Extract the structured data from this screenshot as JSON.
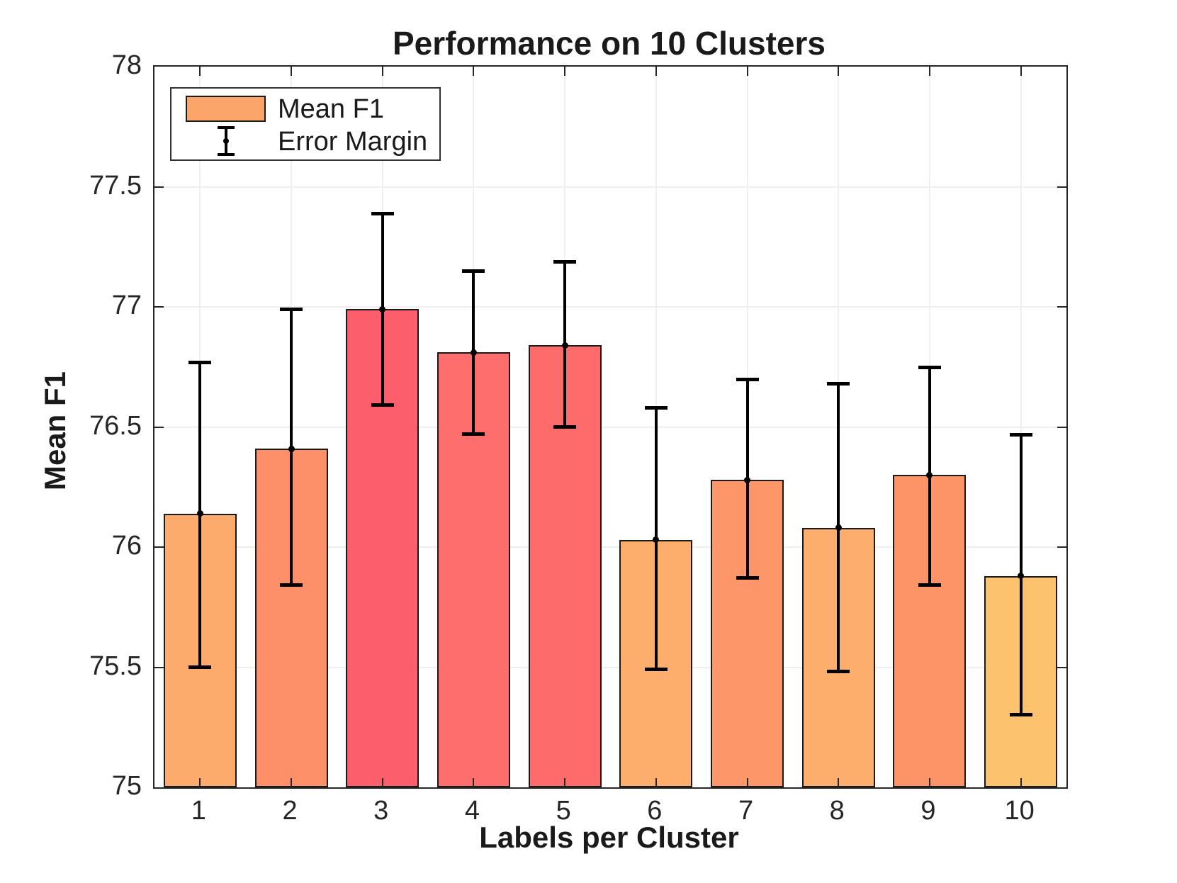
{
  "chart_data": {
    "type": "bar",
    "title": "Performance on 10 Clusters",
    "xlabel": "Labels per Cluster",
    "ylabel": "Mean F1",
    "categories": [
      "1",
      "2",
      "3",
      "4",
      "5",
      "6",
      "7",
      "8",
      "9",
      "10"
    ],
    "series": [
      {
        "name": "Mean F1",
        "values": [
          76.14,
          76.41,
          76.99,
          76.81,
          76.84,
          76.03,
          76.28,
          76.08,
          76.3,
          75.88
        ]
      }
    ],
    "error_low": [
      75.5,
      75.84,
      76.59,
      76.47,
      76.5,
      75.49,
      75.87,
      75.48,
      75.84,
      75.3
    ],
    "error_high": [
      76.77,
      76.99,
      77.39,
      77.15,
      77.19,
      76.58,
      76.7,
      76.68,
      76.75,
      76.47
    ],
    "bar_colors": [
      "#fdab6c",
      "#fd9069",
      "#fd5e6b",
      "#fd6e6c",
      "#fd6c6b",
      "#fdae6d",
      "#fd9668",
      "#fdad6c",
      "#fd9468",
      "#fdc26e"
    ],
    "bar_edge_color": "#1a1a1a",
    "error_color": "#000000",
    "grid_color": "#f3eeee",
    "ylim": [
      75,
      78
    ],
    "yticks": [
      75,
      75.5,
      76,
      76.5,
      77,
      77.5,
      78
    ],
    "grid": true,
    "legend": {
      "position": "top-left",
      "items": [
        {
          "label": "Mean F1",
          "swatch": "bar",
          "swatch_color": "#fba56b"
        },
        {
          "label": "Error Margin",
          "swatch": "errorbar"
        }
      ]
    }
  }
}
